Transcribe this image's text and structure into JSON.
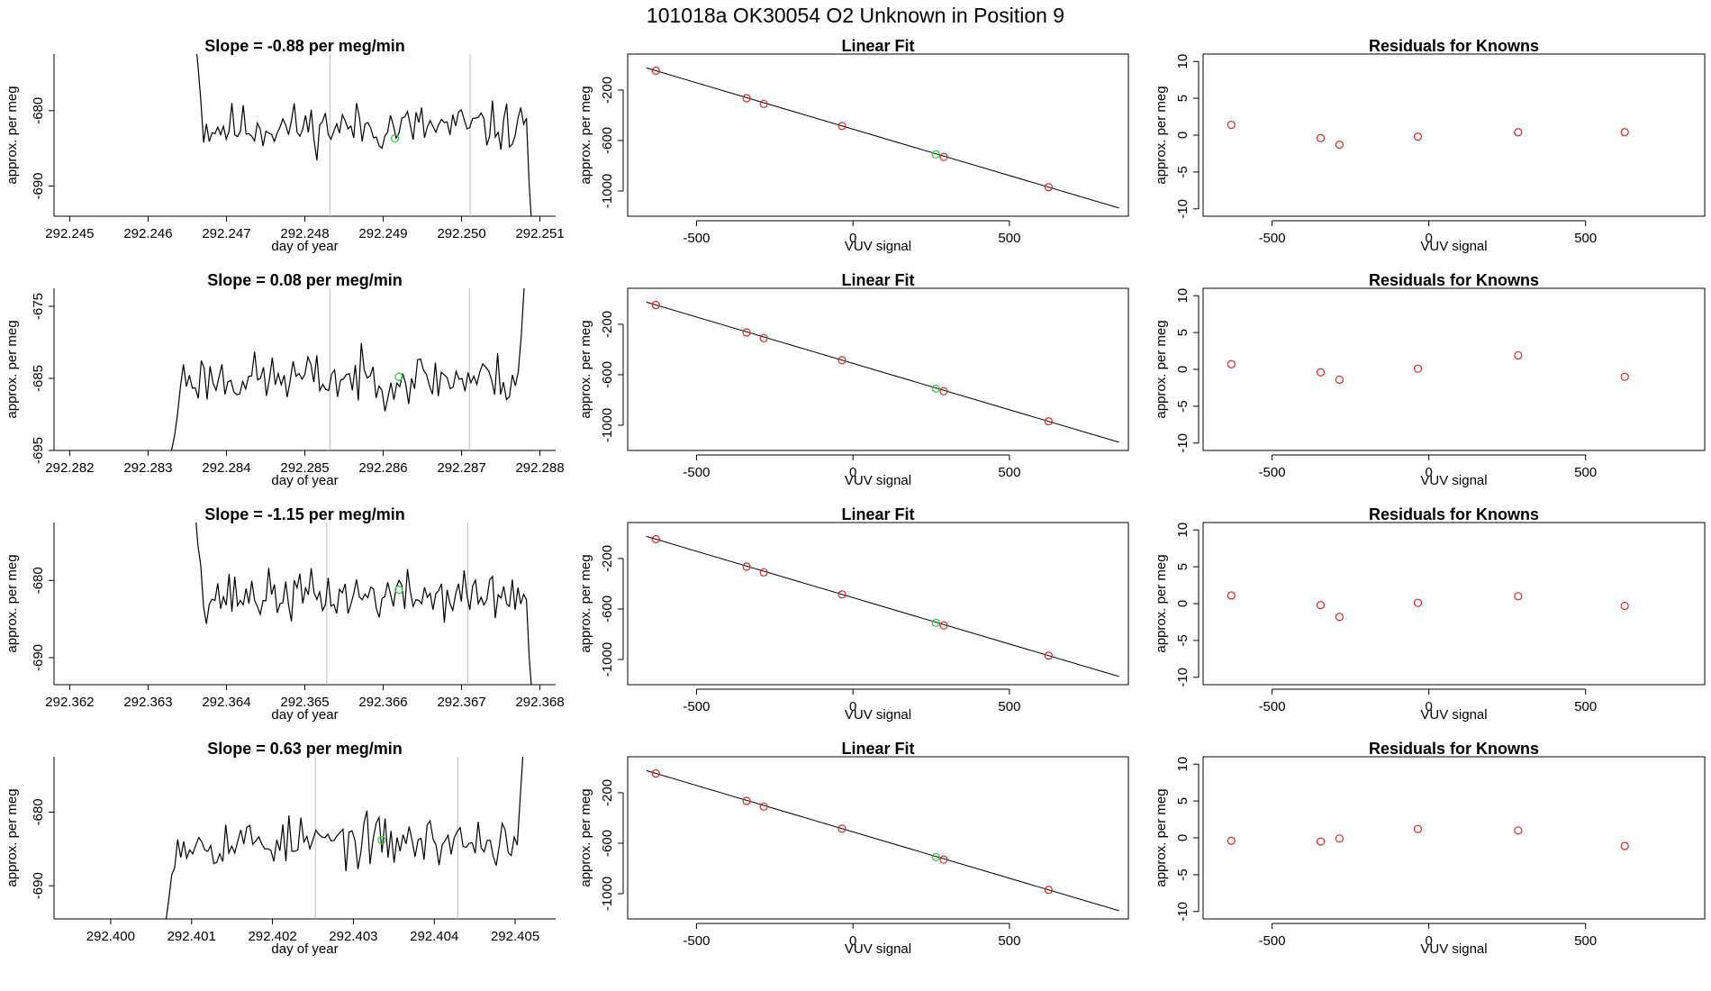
{
  "page_title": "101018a      OK30054    O2 Unknown in Position  9",
  "colors": {
    "axis": "#000000",
    "line": "#000000",
    "known_marker": "#d62728",
    "unknown_marker": "#2ecc40",
    "vertical_marker": "#bbbbbb"
  },
  "chart_data": [
    {
      "row": 1,
      "timeseries": {
        "type": "line",
        "title": "Slope =  -0.88  per meg/min",
        "xlabel": "day of year",
        "ylabel": "approx. per meg",
        "xlim": [
          292.2448,
          292.2512
        ],
        "ylim": [
          -694.0,
          -672.5
        ],
        "xticks": [
          292.245,
          292.246,
          292.247,
          292.248,
          292.249,
          292.25,
          292.251
        ],
        "xtick_labels": [
          "292.245",
          "292.246",
          "292.247",
          "292.248",
          "292.249",
          "292.250",
          "292.251"
        ],
        "yticks": [
          -680,
          -690
        ],
        "ytick_labels": [
          "-680",
          "-690"
        ],
        "start": 292.2466,
        "end": 292.2509,
        "mean": -682.2,
        "noise": 2.0,
        "seed": 11,
        "head": [
          -670.0,
          -674.0,
          -678.5
        ],
        "tail": [
          -681.0,
          -690.0,
          -696.0
        ],
        "vlines": [
          292.24832,
          292.25011
        ],
        "unknown_point": [
          292.24915,
          -683.7
        ]
      },
      "linear_fit": {
        "type": "scatter",
        "title": "Linear Fit",
        "xlabel": "VUV signal",
        "ylabel": "approx. per meg",
        "xlim": [
          -720,
          880
        ],
        "ylim": [
          -1200,
          85
        ],
        "xticks": [
          -500,
          0,
          500
        ],
        "xtick_labels": [
          "-500",
          "0",
          "500"
        ],
        "yticks": [
          -200,
          -600,
          -1000
        ],
        "ytick_labels": [
          "-200",
          "-600",
          "-1000"
        ],
        "fit_line": [
          [
            -660,
            -25
          ],
          [
            850,
            -1135
          ]
        ],
        "known_points": [
          [
            -630,
            -47
          ],
          [
            -340,
            -265
          ],
          [
            -285,
            -310
          ],
          [
            -35,
            -485
          ],
          [
            290,
            -730
          ],
          [
            625,
            -970
          ]
        ],
        "unknown_point": [
          265,
          -710
        ]
      },
      "residuals": {
        "type": "scatter",
        "title": "Residuals for Knowns",
        "xlabel": "VUV signal",
        "ylabel": "approx. per meg",
        "xlim": [
          -720,
          880
        ],
        "ylim": [
          -11,
          11
        ],
        "xticks": [
          -500,
          0,
          500
        ],
        "xtick_labels": [
          "-500",
          "0",
          "500"
        ],
        "yticks": [
          10,
          5,
          0,
          -5,
          -10
        ],
        "ytick_labels": [
          "10",
          "5",
          "0",
          "-5",
          "-10"
        ],
        "points": [
          [
            -630,
            1.4
          ],
          [
            -345,
            -0.4
          ],
          [
            -285,
            -1.3
          ],
          [
            -35,
            -0.2
          ],
          [
            285,
            0.4
          ],
          [
            625,
            0.4
          ]
        ]
      }
    },
    {
      "row": 2,
      "timeseries": {
        "type": "line",
        "title": "Slope =  0.08  per meg/min",
        "xlabel": "day of year",
        "ylabel": "approx. per meg",
        "xlim": [
          292.2818,
          292.2882
        ],
        "ylim": [
          -695.0,
          -672.5
        ],
        "xticks": [
          292.282,
          292.283,
          292.284,
          292.285,
          292.286,
          292.287,
          292.288
        ],
        "xtick_labels": [
          "292.282",
          "292.283",
          "292.284",
          "292.285",
          "292.286",
          "292.287",
          "292.288"
        ],
        "yticks": [
          -675,
          -685,
          -695
        ],
        "ytick_labels": [
          "-675",
          "-685",
          "-695"
        ],
        "start": 292.2833,
        "end": 292.2878,
        "mean": -685.0,
        "noise": 2.2,
        "seed": 23,
        "head": [
          -695.0,
          -693.0,
          -690.0
        ],
        "tail": [
          -684.0,
          -679.0,
          -672.0
        ],
        "vlines": [
          292.28532,
          292.2871
        ],
        "unknown_point": [
          292.2862,
          -684.8
        ]
      },
      "linear_fit": {
        "type": "scatter",
        "title": "Linear Fit",
        "xlabel": "VUV signal",
        "ylabel": "approx. per meg",
        "xlim": [
          -720,
          880
        ],
        "ylim": [
          -1200,
          85
        ],
        "xticks": [
          -500,
          0,
          500
        ],
        "xtick_labels": [
          "-500",
          "0",
          "500"
        ],
        "yticks": [
          -200,
          -600,
          -1000
        ],
        "ytick_labels": [
          "-200",
          "-600",
          "-1000"
        ],
        "fit_line": [
          [
            -660,
            -25
          ],
          [
            850,
            -1135
          ]
        ],
        "known_points": [
          [
            -630,
            -47
          ],
          [
            -340,
            -265
          ],
          [
            -285,
            -310
          ],
          [
            -35,
            -485
          ],
          [
            290,
            -730
          ],
          [
            625,
            -970
          ]
        ],
        "unknown_point": [
          265,
          -710
        ]
      },
      "residuals": {
        "type": "scatter",
        "title": "Residuals for Knowns",
        "xlabel": "VUV signal",
        "ylabel": "approx. per meg",
        "xlim": [
          -720,
          880
        ],
        "ylim": [
          -11,
          11
        ],
        "xticks": [
          -500,
          0,
          500
        ],
        "xtick_labels": [
          "-500",
          "0",
          "500"
        ],
        "yticks": [
          10,
          5,
          0,
          -5,
          -10
        ],
        "ytick_labels": [
          "10",
          "5",
          "0",
          "-5",
          "-10"
        ],
        "points": [
          [
            -630,
            0.7
          ],
          [
            -345,
            -0.4
          ],
          [
            -285,
            -1.4
          ],
          [
            -35,
            0.1
          ],
          [
            285,
            1.9
          ],
          [
            625,
            -1.0
          ]
        ]
      }
    },
    {
      "row": 3,
      "timeseries": {
        "type": "line",
        "title": "Slope =  -1.15  per meg/min",
        "xlabel": "day of year",
        "ylabel": "approx. per meg",
        "xlim": [
          292.3618,
          292.3682
        ],
        "ylim": [
          -693.5,
          -672.5
        ],
        "xticks": [
          292.362,
          292.363,
          292.364,
          292.365,
          292.366,
          292.367,
          292.368
        ],
        "xtick_labels": [
          "292.362",
          "292.363",
          "292.364",
          "292.365",
          "292.366",
          "292.367",
          "292.368"
        ],
        "yticks": [
          -680,
          -690
        ],
        "ytick_labels": [
          "-680",
          "-690"
        ],
        "start": 292.3636,
        "end": 292.3679,
        "mean": -682.0,
        "noise": 2.0,
        "seed": 37,
        "head": [
          -671.0,
          -675.5,
          -678.0
        ],
        "tail": [
          -682.5,
          -690.0,
          -695.0
        ],
        "vlines": [
          292.36528,
          292.36708
        ],
        "unknown_point": [
          292.3662,
          -681.2
        ]
      },
      "linear_fit": {
        "type": "scatter",
        "title": "Linear Fit",
        "xlabel": "VUV signal",
        "ylabel": "approx. per meg",
        "xlim": [
          -720,
          880
        ],
        "ylim": [
          -1200,
          85
        ],
        "xticks": [
          -500,
          0,
          500
        ],
        "xtick_labels": [
          "-500",
          "0",
          "500"
        ],
        "yticks": [
          -200,
          -600,
          -1000
        ],
        "ytick_labels": [
          "-200",
          "-600",
          "-1000"
        ],
        "fit_line": [
          [
            -660,
            -25
          ],
          [
            850,
            -1135
          ]
        ],
        "known_points": [
          [
            -630,
            -47
          ],
          [
            -340,
            -265
          ],
          [
            -285,
            -310
          ],
          [
            -35,
            -485
          ],
          [
            290,
            -730
          ],
          [
            625,
            -970
          ]
        ],
        "unknown_point": [
          265,
          -710
        ]
      },
      "residuals": {
        "type": "scatter",
        "title": "Residuals for Knowns",
        "xlabel": "VUV signal",
        "ylabel": "approx. per meg",
        "xlim": [
          -720,
          880
        ],
        "ylim": [
          -11,
          11
        ],
        "xticks": [
          -500,
          0,
          500
        ],
        "xtick_labels": [
          "-500",
          "0",
          "500"
        ],
        "yticks": [
          10,
          5,
          0,
          -5,
          -10
        ],
        "ytick_labels": [
          "10",
          "5",
          "0",
          "-5",
          "-10"
        ],
        "points": [
          [
            -630,
            1.1
          ],
          [
            -345,
            -0.2
          ],
          [
            -285,
            -1.8
          ],
          [
            -35,
            0.1
          ],
          [
            285,
            1.0
          ],
          [
            625,
            -0.3
          ]
        ]
      }
    },
    {
      "row": 4,
      "timeseries": {
        "type": "line",
        "title": "Slope =  0.63  per meg/min",
        "xlabel": "day of year",
        "ylabel": "approx. per meg",
        "xlim": [
          292.3993,
          292.4055
        ],
        "ylim": [
          -694.5,
          -672.5
        ],
        "xticks": [
          292.4,
          292.401,
          292.402,
          292.403,
          292.404,
          292.405
        ],
        "xtick_labels": [
          "292.400",
          "292.401",
          "292.402",
          "292.403",
          "292.404",
          "292.405"
        ],
        "yticks": [
          -680,
          -690
        ],
        "ytick_labels": [
          "-680",
          "-690"
        ],
        "start": 292.40068,
        "end": 292.4051,
        "mean": -684.0,
        "noise": 2.1,
        "seed": 53,
        "head": [
          -695.0,
          -692.0,
          -688.5
        ],
        "tail": [
          -684.5,
          -678.0,
          -671.5
        ],
        "vlines": [
          292.40253,
          292.40429
        ],
        "unknown_point": [
          292.40335,
          -683.8
        ]
      },
      "linear_fit": {
        "type": "scatter",
        "title": "Linear Fit",
        "xlabel": "VUV signal",
        "ylabel": "approx. per meg",
        "xlim": [
          -720,
          880
        ],
        "ylim": [
          -1200,
          85
        ],
        "xticks": [
          -500,
          0,
          500
        ],
        "xtick_labels": [
          "-500",
          "0",
          "500"
        ],
        "yticks": [
          -200,
          -600,
          -1000
        ],
        "ytick_labels": [
          "-200",
          "-600",
          "-1000"
        ],
        "fit_line": [
          [
            -660,
            -25
          ],
          [
            850,
            -1135
          ]
        ],
        "known_points": [
          [
            -630,
            -47
          ],
          [
            -340,
            -265
          ],
          [
            -285,
            -310
          ],
          [
            -35,
            -485
          ],
          [
            290,
            -730
          ],
          [
            625,
            -970
          ]
        ],
        "unknown_point": [
          265,
          -710
        ]
      },
      "residuals": {
        "type": "scatter",
        "title": "Residuals for Knowns",
        "xlabel": "VUV signal",
        "ylabel": "approx. per meg",
        "xlim": [
          -720,
          880
        ],
        "ylim": [
          -11,
          11
        ],
        "xticks": [
          -500,
          0,
          500
        ],
        "xtick_labels": [
          "-500",
          "0",
          "500"
        ],
        "yticks": [
          10,
          5,
          0,
          -5,
          -10
        ],
        "ytick_labels": [
          "10",
          "5",
          "0",
          "-5",
          "-10"
        ],
        "points": [
          [
            -630,
            -0.4
          ],
          [
            -345,
            -0.5
          ],
          [
            -285,
            -0.1
          ],
          [
            -35,
            1.2
          ],
          [
            285,
            1.0
          ],
          [
            625,
            -1.1
          ]
        ]
      }
    }
  ]
}
